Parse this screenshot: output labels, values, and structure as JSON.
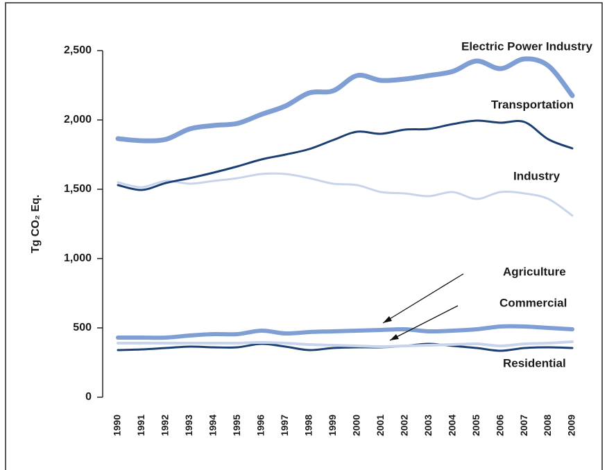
{
  "chart_data": {
    "type": "line",
    "y_label": "Tg CO₂ Eq.",
    "categories": [
      "1990",
      "1991",
      "1992",
      "1993",
      "1994",
      "1995",
      "1996",
      "1997",
      "1998",
      "1999",
      "2000",
      "2001",
      "2002",
      "2003",
      "2004",
      "2005",
      "2006",
      "2007",
      "2008",
      "2009"
    ],
    "ylim": [
      0,
      2500
    ],
    "yticks": [
      0,
      500,
      {
        "value": 1000,
        "label": "1,000"
      },
      {
        "value": 1500,
        "label": "1,500"
      },
      {
        "value": 2000,
        "label": "2,000"
      },
      {
        "value": 2500,
        "label": "2,500"
      }
    ],
    "series": [
      {
        "name": "Electric Power Industry",
        "color": "#7f9fd4",
        "values": [
          1865,
          1850,
          1860,
          1935,
          1960,
          1975,
          2040,
          2100,
          2195,
          2210,
          2320,
          2285,
          2295,
          2320,
          2350,
          2425,
          2370,
          2440,
          2390,
          2175
        ]
      },
      {
        "name": "Transportation",
        "color": "#1c3f73",
        "values": [
          1530,
          1495,
          1545,
          1580,
          1620,
          1665,
          1715,
          1750,
          1790,
          1855,
          1915,
          1900,
          1930,
          1935,
          1970,
          1995,
          1980,
          1985,
          1860,
          1795
        ]
      },
      {
        "name": "Industry",
        "color": "#c8d4ec",
        "values": [
          1550,
          1515,
          1560,
          1540,
          1560,
          1580,
          1610,
          1610,
          1580,
          1540,
          1530,
          1480,
          1470,
          1450,
          1480,
          1430,
          1480,
          1470,
          1430,
          1310
        ]
      },
      {
        "name": "Agriculture",
        "color": "#7f9fd4",
        "values": [
          430,
          430,
          430,
          445,
          455,
          455,
          480,
          460,
          470,
          475,
          480,
          485,
          490,
          475,
          480,
          490,
          510,
          510,
          500,
          490
        ]
      },
      {
        "name": "Commercial",
        "color": "#c8d4ec",
        "values": [
          390,
          390,
          390,
          390,
          390,
          390,
          395,
          390,
          380,
          375,
          370,
          365,
          370,
          375,
          380,
          385,
          370,
          385,
          390,
          400
        ]
      },
      {
        "name": "Residential",
        "color": "#1c3f73",
        "values": [
          340,
          345,
          355,
          365,
          360,
          360,
          385,
          365,
          340,
          355,
          360,
          360,
          370,
          385,
          370,
          355,
          335,
          355,
          360,
          355
        ]
      }
    ]
  }
}
